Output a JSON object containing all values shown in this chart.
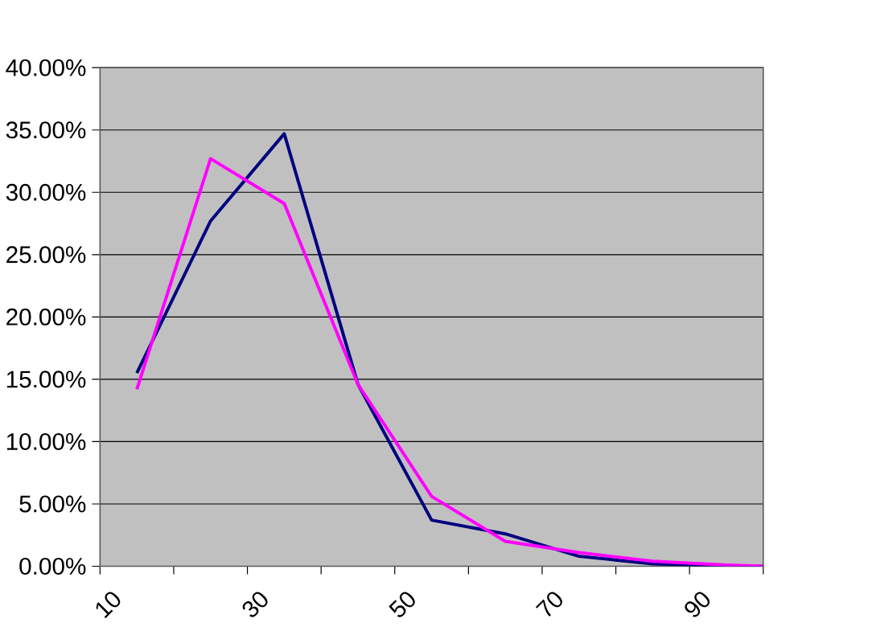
{
  "chart_data": {
    "type": "line",
    "x": [
      15,
      25,
      35,
      45,
      55,
      65,
      75,
      85,
      95,
      100
    ],
    "series": [
      {
        "color": "#000080",
        "values": [
          15.5,
          27.7,
          34.7,
          14.6,
          3.7,
          2.6,
          0.8,
          0.2,
          0.0,
          0.0
        ]
      },
      {
        "color": "#ff00ff",
        "values": [
          14.2,
          32.7,
          29.1,
          14.6,
          5.6,
          2.0,
          1.1,
          0.4,
          0.1,
          0.0
        ]
      }
    ],
    "xlim": [
      10,
      100
    ],
    "xticks": [
      10,
      {
        "value": 20,
        "label": null
      },
      30,
      {
        "value": 40,
        "label": null
      },
      50,
      {
        "value": 60,
        "label": null
      },
      70,
      {
        "value": 80,
        "label": null
      },
      90,
      {
        "value": 100,
        "label": null
      }
    ],
    "ylim": [
      0,
      40
    ],
    "yticks": [
      {
        "value": 0,
        "label": "0.00%"
      },
      {
        "value": 5,
        "label": "5.00%"
      },
      {
        "value": 10,
        "label": "10.00%"
      },
      {
        "value": 15,
        "label": "15.00%"
      },
      {
        "value": 20,
        "label": "20.00%"
      },
      {
        "value": 25,
        "label": "25.00%"
      },
      {
        "value": 30,
        "label": "30.00%"
      },
      {
        "value": 35,
        "label": "35.00%"
      },
      {
        "value": 40,
        "label": "40.00%"
      }
    ],
    "grid": "y",
    "marker": "none",
    "line_style": "solid"
  }
}
